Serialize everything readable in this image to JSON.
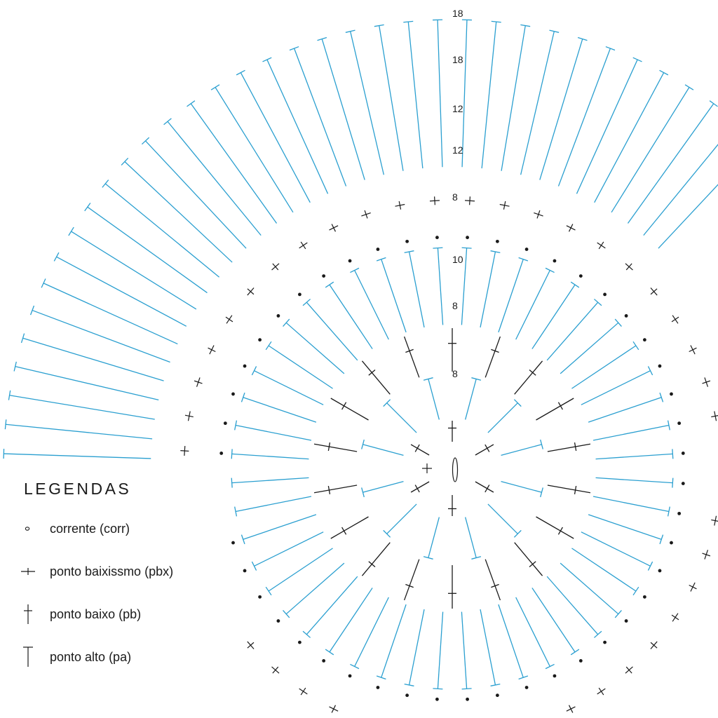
{
  "colors": {
    "black": "#1a1a1a",
    "blue": "#2a9fd0"
  },
  "chart_data": {
    "type": "crochet-chart",
    "row_labels": [
      "8",
      "8",
      "10",
      "8",
      "12",
      "12",
      "18",
      "18"
    ],
    "rings": [
      {
        "stitch": "pb",
        "count": 6,
        "color": "black"
      },
      {
        "stitch": "pa",
        "count": 12,
        "color": "blue"
      },
      {
        "stitch": "pb",
        "count": 18,
        "color": "black"
      },
      {
        "stitch": "pa",
        "count": 48,
        "color": "blue"
      },
      {
        "stitch": "corr",
        "count": 48,
        "color": "black"
      },
      {
        "stitch": "pbx",
        "count": 48,
        "color": "black"
      },
      {
        "stitch": "pa",
        "count": 96,
        "color": "blue"
      }
    ]
  },
  "legend": {
    "title": "LEGENDAS",
    "items": [
      {
        "icon": "chain-icon",
        "label": "corrente (corr)"
      },
      {
        "icon": "slip-stitch-icon",
        "label": "ponto baixissmo (pbx)"
      },
      {
        "icon": "single-crochet-icon",
        "label": "ponto baixo (pb)"
      },
      {
        "icon": "double-crochet-icon",
        "label": "ponto alto (pa)"
      }
    ]
  }
}
